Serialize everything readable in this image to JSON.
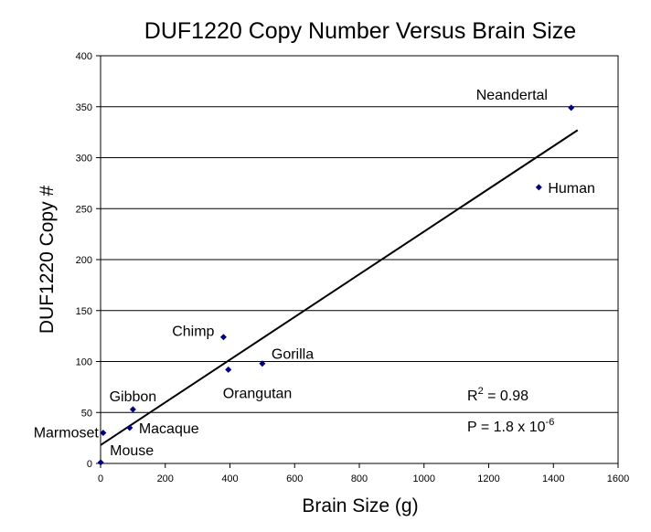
{
  "chart_data": {
    "type": "scatter",
    "title": "DUF1220 Copy Number Versus Brain Size",
    "xlabel": "Brain Size (g)",
    "ylabel": "DUF1220 Copy #",
    "xlim": [
      0,
      1600
    ],
    "ylim": [
      0,
      400
    ],
    "xticks": [
      0,
      200,
      400,
      600,
      800,
      1000,
      1200,
      1400,
      1600
    ],
    "yticks": [
      0,
      50,
      100,
      150,
      200,
      250,
      300,
      350,
      400
    ],
    "grid": "horizontal",
    "legend": "none",
    "marker_color": "#00007F",
    "points": [
      {
        "label": "Mouse",
        "x": 0.4,
        "y": 1
      },
      {
        "label": "Marmoset",
        "x": 8,
        "y": 30
      },
      {
        "label": "Macaque",
        "x": 90,
        "y": 35
      },
      {
        "label": "Gibbon",
        "x": 100,
        "y": 53
      },
      {
        "label": "Chimp",
        "x": 380,
        "y": 124
      },
      {
        "label": "Orangutan",
        "x": 395,
        "y": 92
      },
      {
        "label": "Gorilla",
        "x": 500,
        "y": 98
      },
      {
        "label": "Human",
        "x": 1355,
        "y": 271
      },
      {
        "label": "Neandertal",
        "x": 1455,
        "y": 349
      }
    ],
    "trendline": {
      "x": [
        0,
        1475
      ],
      "y": [
        18,
        327
      ]
    },
    "annotations": {
      "r2_text": "R",
      "r2_sup": "2",
      "r2_value": " = 0.98",
      "p_text": "P = 1.8 x 10",
      "p_sup": "-6"
    }
  }
}
